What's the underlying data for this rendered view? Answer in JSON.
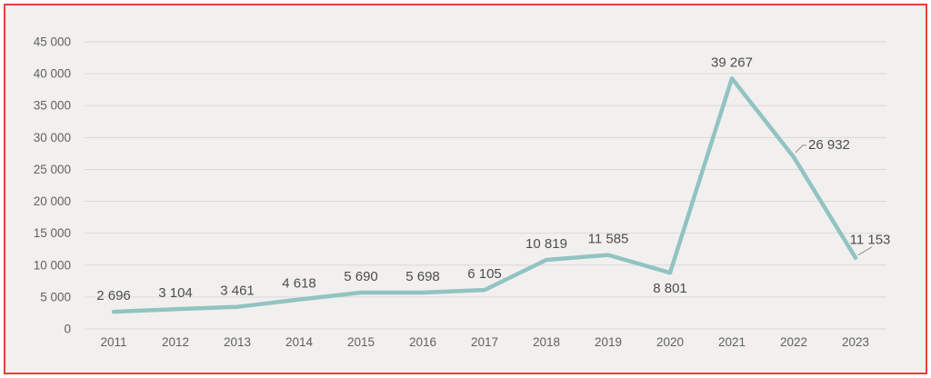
{
  "chart_data": {
    "type": "line",
    "title": "",
    "xlabel": "",
    "ylabel": "",
    "categories": [
      "2011",
      "2012",
      "2013",
      "2014",
      "2015",
      "2016",
      "2017",
      "2018",
      "2019",
      "2020",
      "2021",
      "2022",
      "2023"
    ],
    "series": [
      {
        "name": "",
        "values": [
          2696,
          3104,
          3461,
          4618,
          5690,
          5698,
          6105,
          10819,
          11585,
          8801,
          39267,
          26932,
          11153
        ]
      }
    ],
    "point_labels": [
      "2 696",
      "3 104",
      "3 461",
      "4 618",
      "5 690",
      "5 698",
      "6 105",
      "10 819",
      "11 585",
      "8 801",
      "39 267",
      "26 932",
      "11 153"
    ],
    "label_positions": [
      "above",
      "above",
      "above",
      "above",
      "above",
      "above",
      "above",
      "above",
      "above",
      "below",
      "above",
      "callout-right",
      "callout-above"
    ],
    "y_ticks": [
      {
        "value": 0,
        "label": "0"
      },
      {
        "value": 5000,
        "label": "5 000"
      },
      {
        "value": 10000,
        "label": "10 000"
      },
      {
        "value": 15000,
        "label": "15 000"
      },
      {
        "value": 20000,
        "label": "20 000"
      },
      {
        "value": 25000,
        "label": "25 000"
      },
      {
        "value": 30000,
        "label": "30 000"
      },
      {
        "value": 35000,
        "label": "35 000"
      },
      {
        "value": 40000,
        "label": "40 000"
      },
      {
        "value": 45000,
        "label": "45 000"
      }
    ],
    "ylim": [
      0,
      45000
    ],
    "grid": true,
    "legend": "none",
    "colors": {
      "line": "#92c3c3",
      "grid": "#dad9d7",
      "axis_text": "#616161",
      "label_text": "#4d4d4d",
      "background": "#f1f0ee",
      "frame_border": "#e5423a",
      "leader": "#8f8f8f",
      "page_background": "#ffffff"
    }
  }
}
